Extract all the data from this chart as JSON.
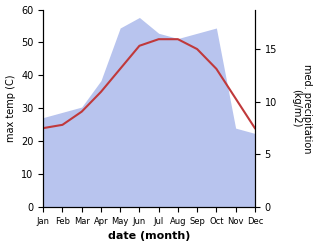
{
  "months": [
    "Jan",
    "Feb",
    "Mar",
    "Apr",
    "May",
    "Jun",
    "Jul",
    "Aug",
    "Sep",
    "Oct",
    "Nov",
    "Dec"
  ],
  "temp": [
    24,
    25,
    29,
    35,
    42,
    49,
    51,
    51,
    48,
    42,
    33,
    24
  ],
  "precip": [
    8.5,
    9.0,
    9.5,
    12.0,
    17.0,
    18.0,
    16.5,
    16.0,
    16.5,
    17.0,
    7.5,
    7.0
  ],
  "temp_ylim": [
    0,
    60
  ],
  "precip_ylim": [
    0,
    18.75
  ],
  "temp_color": "#c0393b",
  "precip_fill_color": "#b8c4ee",
  "temp_label": "max temp (C)",
  "precip_label": "med. precipitation\n(kg/m2)",
  "xlabel": "date (month)",
  "fig_width": 3.18,
  "fig_height": 2.47,
  "dpi": 100,
  "left_yticks": [
    0,
    10,
    20,
    30,
    40,
    50,
    60
  ],
  "right_yticks": [
    0,
    5,
    10,
    15
  ],
  "scale_factor": 3.2
}
